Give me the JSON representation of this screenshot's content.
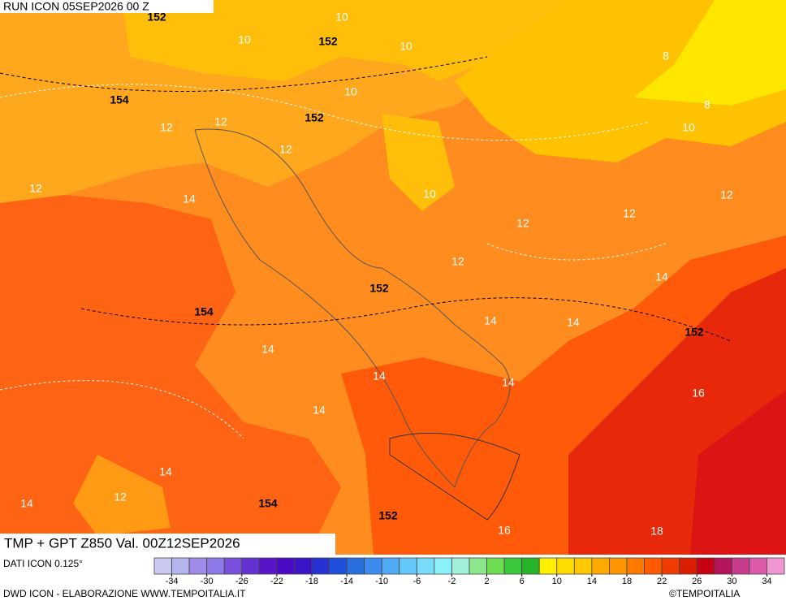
{
  "run_label": "RUN ICON 05SEP2026 00 Z",
  "product_label": "TMP + GPT Z850 Val. 00Z12SEP2026",
  "source_label": "DATI ICON 0.125°",
  "credit_left": "DWD ICON - ELABORAZIONE WWW.TEMPOITALIA.IT",
  "credit_right": "©TEMPOITALIA",
  "colorbar": {
    "lim": [
      -36,
      36
    ],
    "ticks": [
      -34,
      -30,
      -26,
      -22,
      -18,
      -14,
      -10,
      -6,
      -2,
      2,
      6,
      10,
      14,
      18,
      22,
      26,
      30,
      34
    ],
    "colors": [
      "#c8c8f0",
      "#b4b4ee",
      "#a08ce8",
      "#8c78e6",
      "#7850dc",
      "#6432d2",
      "#5a14c8",
      "#4b0ac3",
      "#3c14c8",
      "#2832d2",
      "#1e50dc",
      "#286edc",
      "#3c8cf0",
      "#50aaf5",
      "#64c8fa",
      "#78dcfa",
      "#8cf0fa",
      "#a0f0dc",
      "#8ce68c",
      "#6edc50",
      "#3cc83c",
      "#28b428",
      "#fff000",
      "#ffdc00",
      "#ffc800",
      "#ffaa00",
      "#ff9600",
      "#ff7800",
      "#ff5a00",
      "#f03c00",
      "#dc1e00",
      "#c80014",
      "#b4145a",
      "#c83c8c",
      "#dc5aaa",
      "#f096d2"
    ]
  },
  "temperature_labels": [
    10,
    10,
    10,
    8,
    10,
    8,
    10,
    12,
    12,
    12,
    12,
    14,
    10,
    12,
    12,
    12,
    12,
    14,
    14,
    14,
    14,
    14,
    14,
    16,
    14,
    14,
    12,
    14,
    16,
    18
  ],
  "geopotential_labels": [
    152,
    152,
    154,
    152,
    152,
    154,
    152,
    154,
    152
  ]
}
